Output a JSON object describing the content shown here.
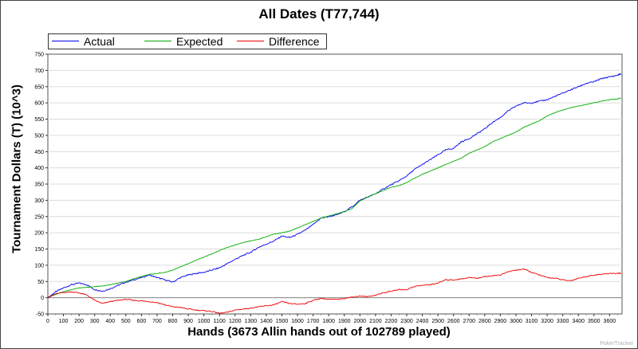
{
  "page": {
    "watermark": "PokerTracker"
  },
  "chart_data": {
    "type": "line",
    "title": "All Dates (T77,744)",
    "xlabel": "Hands (3673 Allin hands out of 102789 played)",
    "ylabel": "Tournament Dollars (T) (10^3)",
    "xlim": [
      0,
      3680
    ],
    "ylim": [
      -50,
      750
    ],
    "x_ticks": [
      0,
      100,
      200,
      300,
      400,
      500,
      600,
      700,
      800,
      900,
      1000,
      1100,
      1200,
      1300,
      1400,
      1500,
      1600,
      1700,
      1800,
      1900,
      2000,
      2100,
      2200,
      2300,
      2400,
      2500,
      2600,
      2700,
      2800,
      2900,
      3000,
      3100,
      3200,
      3300,
      3400,
      3500,
      3600
    ],
    "y_ticks": [
      -50,
      0,
      50,
      100,
      150,
      200,
      250,
      300,
      350,
      400,
      450,
      500,
      550,
      600,
      650,
      700,
      750
    ],
    "grid": true,
    "legend_position": "top-left",
    "series": [
      {
        "name": "Actual",
        "color": "#0000ee",
        "x": [
          0,
          50,
          100,
          150,
          200,
          250,
          300,
          350,
          400,
          450,
          500,
          550,
          600,
          650,
          700,
          750,
          800,
          850,
          900,
          950,
          1000,
          1050,
          1100,
          1150,
          1200,
          1250,
          1300,
          1350,
          1400,
          1450,
          1500,
          1550,
          1600,
          1650,
          1700,
          1750,
          1800,
          1850,
          1900,
          1950,
          2000,
          2050,
          2100,
          2150,
          2200,
          2250,
          2300,
          2350,
          2400,
          2450,
          2500,
          2550,
          2600,
          2650,
          2700,
          2750,
          2800,
          2850,
          2900,
          2950,
          3000,
          3050,
          3100,
          3150,
          3200,
          3250,
          3300,
          3350,
          3400,
          3450,
          3500,
          3550,
          3600,
          3650,
          3673
        ],
        "y": [
          0,
          18,
          30,
          40,
          45,
          40,
          25,
          20,
          28,
          38,
          48,
          55,
          62,
          70,
          62,
          55,
          48,
          62,
          70,
          75,
          78,
          85,
          92,
          105,
          118,
          130,
          140,
          155,
          165,
          175,
          190,
          185,
          195,
          208,
          225,
          245,
          250,
          255,
          265,
          280,
          300,
          310,
          320,
          335,
          348,
          360,
          375,
          395,
          410,
          425,
          440,
          455,
          460,
          480,
          490,
          505,
          520,
          540,
          555,
          575,
          590,
          600,
          600,
          605,
          610,
          620,
          630,
          640,
          650,
          660,
          665,
          675,
          680,
          685,
          690
        ]
      },
      {
        "name": "Expected",
        "color": "#00aa00",
        "x": [
          0,
          50,
          100,
          150,
          200,
          250,
          300,
          350,
          400,
          450,
          500,
          550,
          600,
          650,
          700,
          750,
          800,
          850,
          900,
          950,
          1000,
          1050,
          1100,
          1150,
          1200,
          1250,
          1300,
          1350,
          1400,
          1450,
          1500,
          1550,
          1600,
          1650,
          1700,
          1750,
          1800,
          1850,
          1900,
          1950,
          2000,
          2050,
          2100,
          2150,
          2200,
          2250,
          2300,
          2350,
          2400,
          2450,
          2500,
          2550,
          2600,
          2650,
          2700,
          2750,
          2800,
          2850,
          2900,
          2950,
          3000,
          3050,
          3100,
          3150,
          3200,
          3250,
          3300,
          3350,
          3400,
          3450,
          3500,
          3550,
          3600,
          3650,
          3673
        ],
        "y": [
          0,
          10,
          18,
          25,
          30,
          32,
          34,
          36,
          40,
          45,
          50,
          58,
          65,
          72,
          75,
          78,
          85,
          95,
          105,
          115,
          125,
          135,
          145,
          155,
          162,
          170,
          175,
          180,
          188,
          196,
          200,
          205,
          215,
          225,
          235,
          245,
          252,
          258,
          265,
          275,
          298,
          310,
          320,
          330,
          340,
          345,
          355,
          368,
          380,
          390,
          400,
          410,
          420,
          430,
          445,
          455,
          465,
          480,
          490,
          500,
          510,
          525,
          535,
          545,
          560,
          570,
          578,
          585,
          590,
          595,
          600,
          605,
          610,
          612,
          615
        ]
      },
      {
        "name": "Difference",
        "color": "#ee0000",
        "x": [
          0,
          50,
          100,
          150,
          200,
          250,
          300,
          350,
          400,
          450,
          500,
          550,
          600,
          650,
          700,
          750,
          800,
          850,
          900,
          950,
          1000,
          1050,
          1100,
          1150,
          1200,
          1250,
          1300,
          1350,
          1400,
          1450,
          1500,
          1550,
          1600,
          1650,
          1700,
          1750,
          1800,
          1850,
          1900,
          1950,
          2000,
          2050,
          2100,
          2150,
          2200,
          2250,
          2300,
          2350,
          2400,
          2450,
          2500,
          2550,
          2600,
          2650,
          2700,
          2750,
          2800,
          2850,
          2900,
          2950,
          3000,
          3050,
          3100,
          3150,
          3200,
          3250,
          3300,
          3350,
          3400,
          3450,
          3500,
          3550,
          3600,
          3650,
          3673
        ],
        "y": [
          0,
          12,
          16,
          18,
          15,
          8,
          -8,
          -18,
          -12,
          -8,
          -5,
          -8,
          -10,
          -12,
          -15,
          -22,
          -28,
          -30,
          -35,
          -38,
          -40,
          -42,
          -48,
          -45,
          -38,
          -35,
          -32,
          -28,
          -25,
          -22,
          -12,
          -18,
          -20,
          -18,
          -8,
          -2,
          -5,
          -5,
          -2,
          2,
          5,
          3,
          8,
          15,
          20,
          25,
          25,
          35,
          38,
          40,
          45,
          55,
          55,
          58,
          62,
          60,
          65,
          68,
          70,
          80,
          85,
          88,
          78,
          70,
          62,
          60,
          55,
          52,
          60,
          65,
          70,
          72,
          75,
          75,
          75
        ]
      }
    ]
  }
}
